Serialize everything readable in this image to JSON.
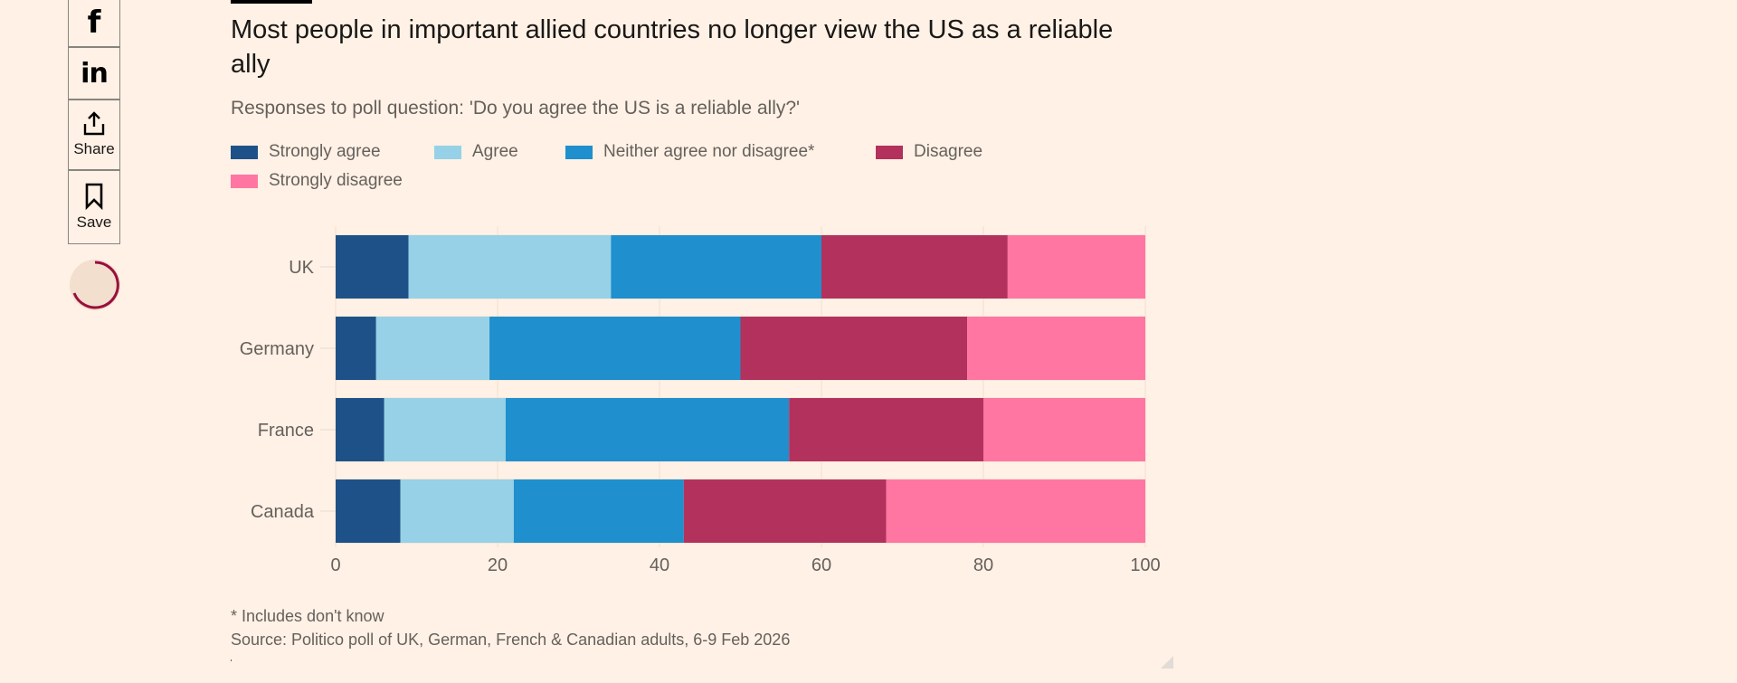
{
  "share": {
    "facebook_icon": "facebook-icon",
    "linkedin_icon": "linkedin-icon",
    "share_label": "Share",
    "save_label": "Save",
    "accent": "#990f3d"
  },
  "chart_data": {
    "type": "bar",
    "orientation": "horizontal",
    "stacked": true,
    "title": "Most people in important allied countries no longer view the US as a reliable ally",
    "subtitle": "Responses to poll question: 'Do you agree the US is a reliable ally?'",
    "xlabel": "",
    "ylabel": "",
    "xlim": [
      0,
      100
    ],
    "xticks": [
      0,
      20,
      40,
      60,
      80,
      100
    ],
    "grid": true,
    "legend_position": "top",
    "categories": [
      "UK",
      "Germany",
      "France",
      "Canada"
    ],
    "series": [
      {
        "name": "Strongly agree",
        "color": "#1f5189",
        "values": [
          9,
          5,
          6,
          8
        ]
      },
      {
        "name": "Agree",
        "color": "#96d1e7",
        "values": [
          25,
          14,
          15,
          14
        ]
      },
      {
        "name": "Neither agree nor disagree*",
        "color": "#1f8fcd",
        "values": [
          26,
          31,
          35,
          21
        ]
      },
      {
        "name": "Disagree",
        "color": "#b3325d",
        "values": [
          23,
          28,
          24,
          25
        ]
      },
      {
        "name": "Strongly disagree",
        "color": "#ff76a2",
        "values": [
          17,
          22,
          20,
          32
        ]
      }
    ],
    "note": "* Includes don't know",
    "source": "Source: Politico poll of UK, German, French & Canadian adults, 6-9 Feb 2026"
  }
}
